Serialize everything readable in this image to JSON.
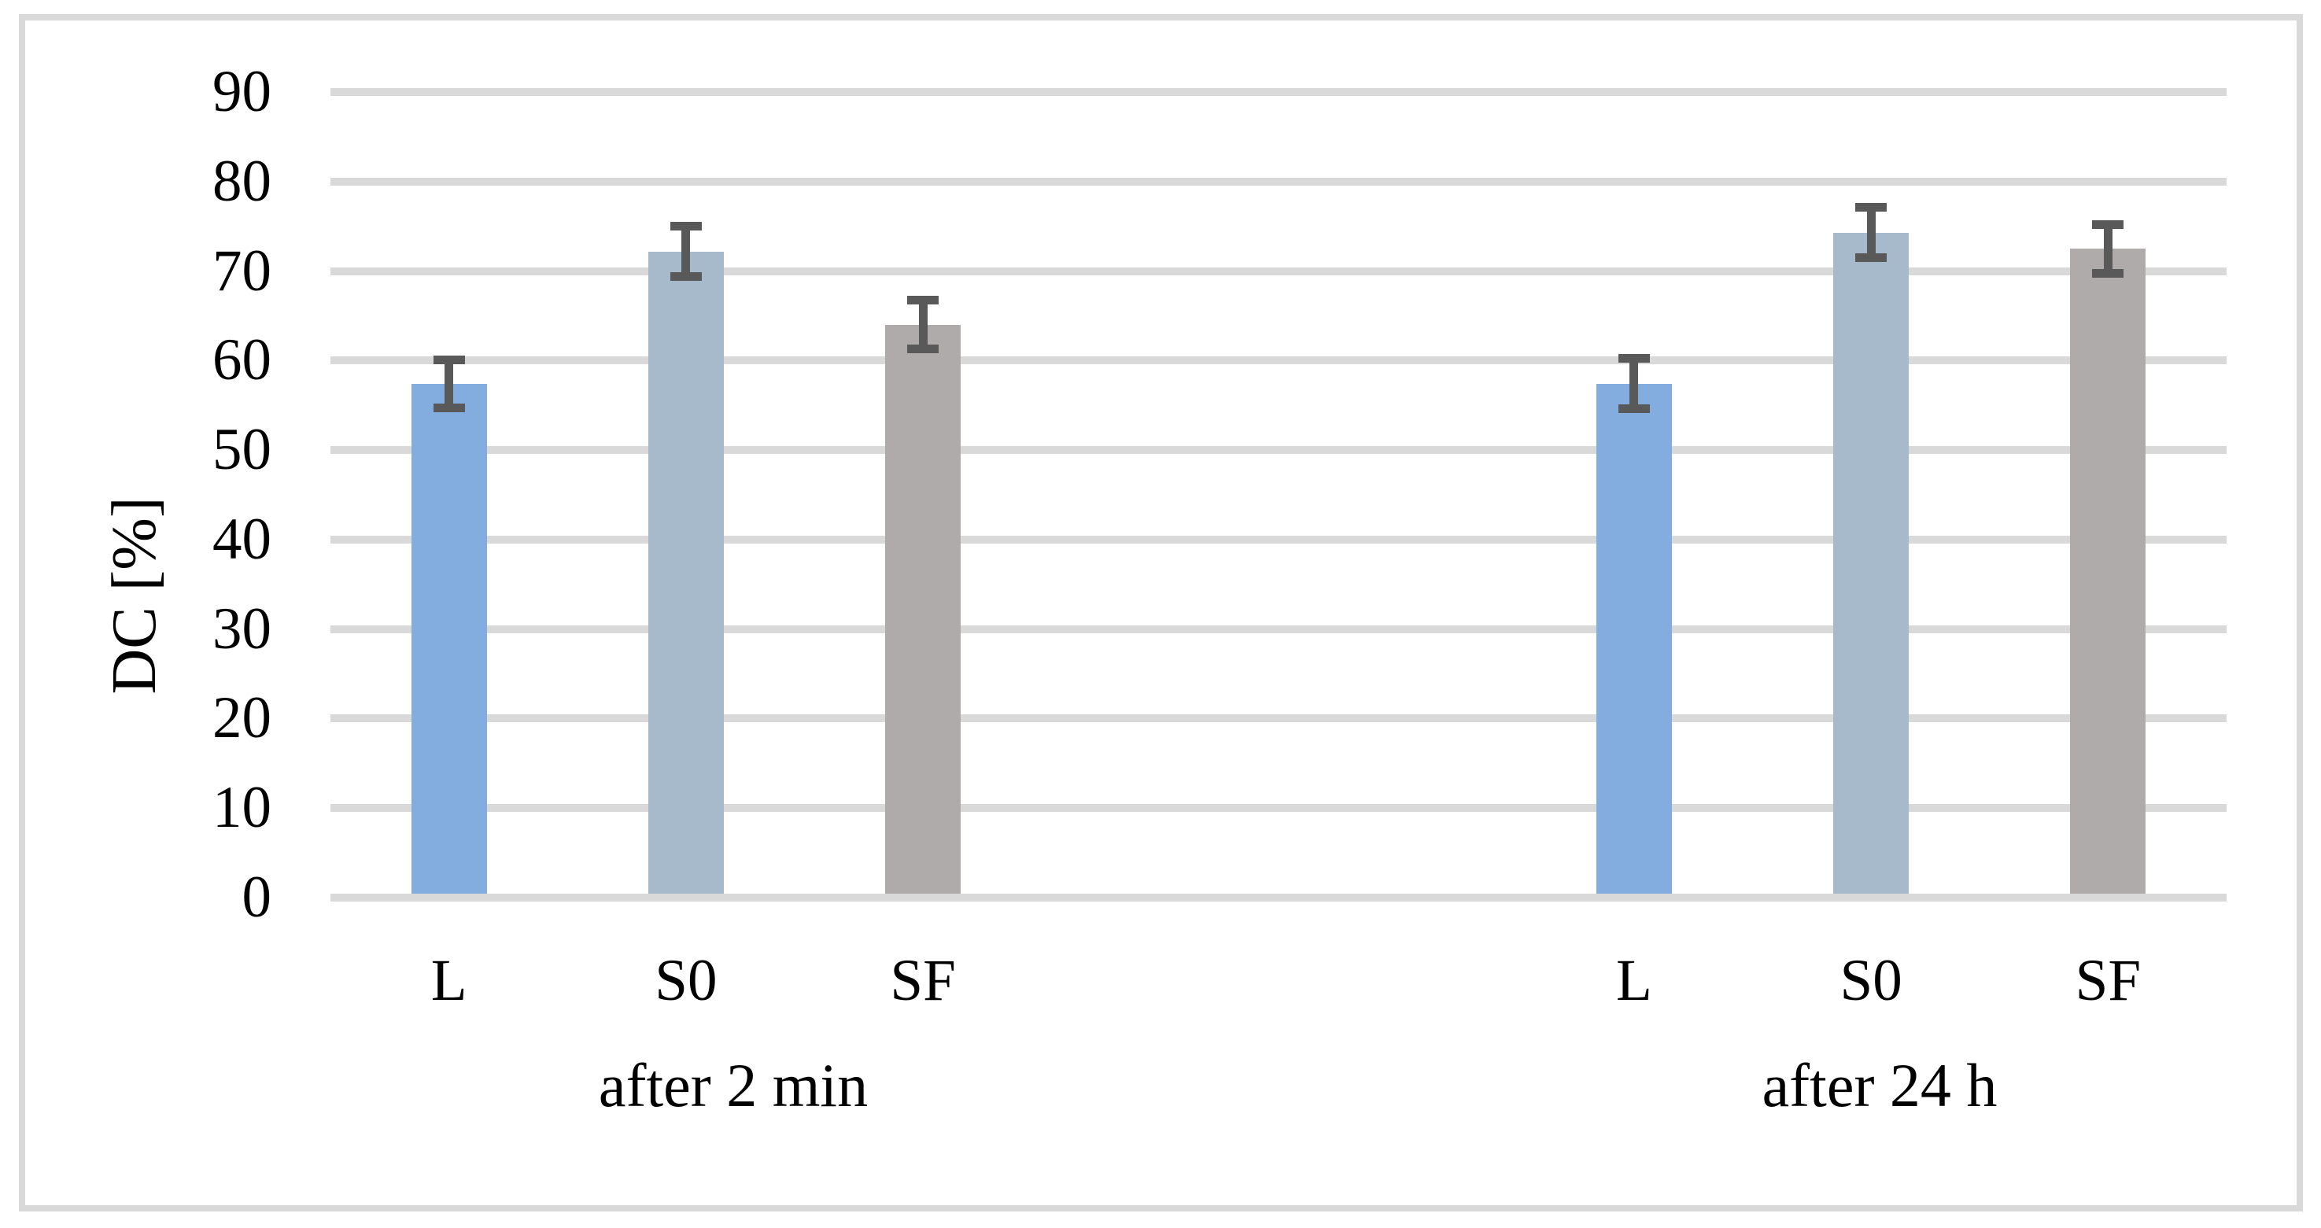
{
  "chart_data": {
    "type": "bar",
    "title": "",
    "xlabel": "",
    "ylabel": "DC [%]",
    "ylim": [
      0,
      90
    ],
    "yticks": [
      0,
      10,
      20,
      30,
      40,
      50,
      60,
      70,
      80,
      90
    ],
    "grid": true,
    "legend": "none",
    "groups": [
      {
        "label": "after 2 min",
        "categories": [
          "L",
          "S0",
          "SF"
        ],
        "values": [
          57.4,
          72.2,
          64.0
        ],
        "errors": [
          3.2,
          3.3,
          3.2
        ]
      },
      {
        "label": "after 24 h",
        "categories": [
          "L",
          "S0",
          "SF"
        ],
        "values": [
          57.4,
          74.3,
          72.5
        ],
        "errors": [
          3.3,
          3.3,
          3.2
        ]
      }
    ],
    "bar_colors": [
      "#82ADDE",
      "#A7BACB",
      "#AFABAB"
    ],
    "gridline_color": "#D9D9D9",
    "baseline_color": "#D9D9D9",
    "error_bar_color": "#595959",
    "frame_color": "#D9D9D9",
    "text_color": "#000000"
  }
}
